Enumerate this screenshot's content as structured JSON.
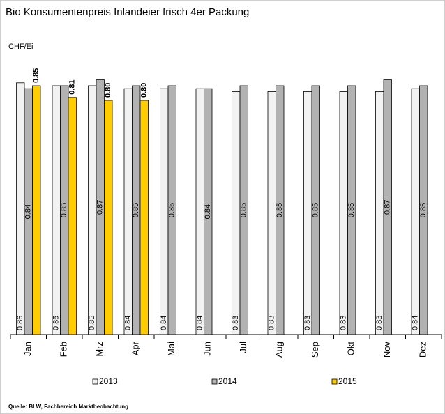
{
  "chart_data": {
    "type": "bar",
    "title": "Bio Konsumentenpreis Inlandeier frisch 4er Packung",
    "y_label": "CHF/Ei",
    "source": "Quelle: BLW, Fachbereich Marktbeobachtung",
    "categories": [
      "Jan",
      "Feb",
      "Mrz",
      "Apr",
      "Mai",
      "Jun",
      "Jul",
      "Aug",
      "Sep",
      "Okt",
      "Nov",
      "Dez"
    ],
    "series": [
      {
        "name": "2013",
        "color": "#f2f2f2",
        "values": [
          0.86,
          0.85,
          0.85,
          0.84,
          0.84,
          0.84,
          0.83,
          0.83,
          0.83,
          0.83,
          0.83,
          0.84
        ]
      },
      {
        "name": "2014",
        "color": "#b2b2b2",
        "values": [
          0.84,
          0.85,
          0.87,
          0.85,
          0.85,
          0.84,
          0.85,
          0.85,
          0.85,
          0.85,
          0.87,
          0.85
        ]
      },
      {
        "name": "2015",
        "color": "#ffcc00",
        "values": [
          0.85,
          0.81,
          0.8,
          0.8,
          null,
          null,
          null,
          null,
          null,
          null,
          null,
          null
        ],
        "value_labels": [
          "0.85",
          "0.81",
          "0.80",
          "0.80",
          null,
          null,
          null,
          null,
          null,
          null,
          null,
          null
        ]
      }
    ],
    "ylim": [
      0,
      1
    ],
    "legend": "bottom"
  }
}
